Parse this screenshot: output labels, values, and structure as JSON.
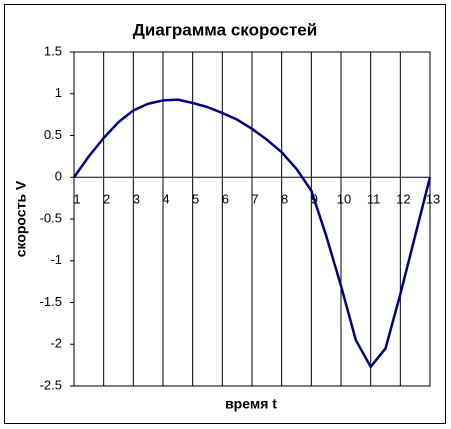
{
  "chart_data": {
    "type": "line",
    "title": "Диаграмма скоростей",
    "x_label": "время t",
    "y_label": "скорость V",
    "x": [
      1,
      1.5,
      2,
      2.5,
      3,
      3.5,
      4,
      4.5,
      5,
      5.5,
      6,
      6.5,
      7,
      7.5,
      8,
      8.5,
      9,
      9.5,
      10,
      10.5,
      11,
      11.5,
      12,
      12.5,
      13
    ],
    "values": [
      0,
      0.25,
      0.47,
      0.66,
      0.8,
      0.88,
      0.92,
      0.93,
      0.89,
      0.84,
      0.77,
      0.69,
      0.58,
      0.45,
      0.3,
      0.1,
      -0.16,
      -0.7,
      -1.3,
      -1.95,
      -2.27,
      -2.05,
      -1.4,
      -0.7,
      0
    ],
    "color": "#000080",
    "xlim": [
      1,
      13
    ],
    "xticks": [
      1,
      2,
      3,
      4,
      5,
      6,
      7,
      8,
      9,
      10,
      11,
      12,
      13
    ],
    "ylim": [
      -2.5,
      1.5
    ],
    "yticks": [
      -2.5,
      -2,
      -1.5,
      -1,
      -0.5,
      0,
      0.5,
      1,
      1.5
    ],
    "x_grid": true
  }
}
